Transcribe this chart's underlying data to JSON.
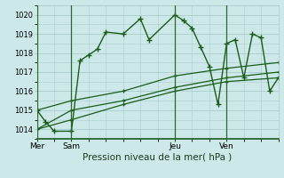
{
  "background_color": "#cce8e8",
  "grid_color": "#aacccc",
  "line_color": "#1a5c1a",
  "xlabel": "Pression niveau de la mer( hPa )",
  "ylim": [
    1013.5,
    1020.5
  ],
  "yticks": [
    1014,
    1015,
    1016,
    1017,
    1018,
    1019,
    1020
  ],
  "day_labels": [
    "Mer",
    "Sam",
    "Jeu",
    "Ven"
  ],
  "day_positions": [
    0,
    2,
    8,
    11
  ],
  "total_steps": 14,
  "series1": {
    "x": [
      0,
      0.5,
      1.0,
      2.0,
      2.5,
      3.0,
      3.5,
      4.0,
      5.0,
      6.0,
      6.5,
      8.0,
      8.5,
      9.0,
      9.5,
      10.0,
      10.5,
      11.0,
      11.5,
      12.0,
      12.5,
      13.0,
      13.5,
      14.0
    ],
    "y": [
      1015.0,
      1014.4,
      1013.9,
      1013.9,
      1017.6,
      1017.9,
      1018.2,
      1019.1,
      1019.0,
      1019.8,
      1018.7,
      1020.0,
      1019.7,
      1019.3,
      1018.3,
      1017.3,
      1015.3,
      1018.5,
      1018.7,
      1016.7,
      1019.0,
      1018.8,
      1016.0,
      1016.7
    ]
  },
  "series2": {
    "x": [
      0,
      2,
      5,
      8,
      11,
      14
    ],
    "y": [
      1014.0,
      1014.5,
      1015.3,
      1016.0,
      1016.5,
      1016.7
    ]
  },
  "series3": {
    "x": [
      0,
      2,
      5,
      8,
      11,
      14
    ],
    "y": [
      1014.0,
      1015.0,
      1015.5,
      1016.2,
      1016.7,
      1017.0
    ]
  },
  "series4": {
    "x": [
      0,
      2,
      5,
      8,
      11,
      14
    ],
    "y": [
      1015.0,
      1015.5,
      1016.0,
      1016.8,
      1017.2,
      1017.5
    ]
  }
}
